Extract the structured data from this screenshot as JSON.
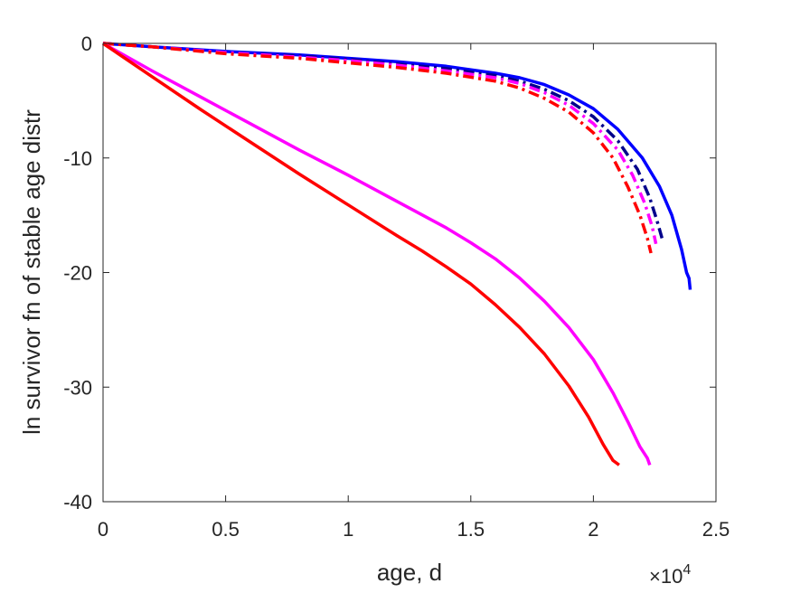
{
  "chart_data": {
    "type": "line",
    "xlabel": "age, d",
    "ylabel": "ln survivor fn of stable age distr",
    "x_exponent_base": "×10",
    "x_exponent_power": "4",
    "xlim": [
      0,
      25000
    ],
    "ylim": [
      -40,
      0
    ],
    "x_ticks": [
      {
        "value": 0,
        "label": "0"
      },
      {
        "value": 5000,
        "label": "0.5"
      },
      {
        "value": 10000,
        "label": "1"
      },
      {
        "value": 15000,
        "label": "1.5"
      },
      {
        "value": 20000,
        "label": "2"
      },
      {
        "value": 25000,
        "label": "2.5"
      }
    ],
    "y_ticks": [
      {
        "value": 0,
        "label": "0"
      },
      {
        "value": -10,
        "label": "-10"
      },
      {
        "value": -20,
        "label": "-20"
      },
      {
        "value": -30,
        "label": "-30"
      },
      {
        "value": -40,
        "label": "-40"
      }
    ],
    "grid": false,
    "legend": "none",
    "series": [
      {
        "color": "#0000ff",
        "style": "solid",
        "points": [
          [
            0,
            0
          ],
          [
            2000,
            -0.3
          ],
          [
            5000,
            -0.7
          ],
          [
            8000,
            -1.0
          ],
          [
            10000,
            -1.3
          ],
          [
            12000,
            -1.6
          ],
          [
            14000,
            -2.0
          ],
          [
            16000,
            -2.6
          ],
          [
            17000,
            -3.0
          ],
          [
            18000,
            -3.6
          ],
          [
            19000,
            -4.5
          ],
          [
            20000,
            -5.7
          ],
          [
            21000,
            -7.5
          ],
          [
            22000,
            -10.0
          ],
          [
            22700,
            -12.5
          ],
          [
            23200,
            -15.0
          ],
          [
            23600,
            -18.0
          ],
          [
            23800,
            -20.0
          ],
          [
            23900,
            -20.5
          ],
          [
            23950,
            -21.5
          ]
        ]
      },
      {
        "color": "#00008b",
        "style": "dashdot",
        "points": [
          [
            0,
            0
          ],
          [
            2000,
            -0.3
          ],
          [
            5000,
            -0.8
          ],
          [
            8000,
            -1.1
          ],
          [
            10000,
            -1.4
          ],
          [
            12000,
            -1.8
          ],
          [
            14000,
            -2.2
          ],
          [
            16000,
            -2.8
          ],
          [
            17000,
            -3.3
          ],
          [
            18000,
            -4.0
          ],
          [
            19000,
            -5.0
          ],
          [
            20000,
            -6.4
          ],
          [
            21000,
            -8.5
          ],
          [
            21800,
            -11.0
          ],
          [
            22300,
            -13.5
          ],
          [
            22600,
            -15.5
          ],
          [
            22800,
            -17.0
          ]
        ]
      },
      {
        "color": "#ff00ff",
        "style": "dashdot",
        "points": [
          [
            0,
            0
          ],
          [
            2000,
            -0.3
          ],
          [
            5000,
            -0.8
          ],
          [
            8000,
            -1.2
          ],
          [
            10000,
            -1.5
          ],
          [
            12000,
            -1.9
          ],
          [
            14000,
            -2.4
          ],
          [
            16000,
            -3.0
          ],
          [
            17000,
            -3.5
          ],
          [
            18000,
            -4.3
          ],
          [
            19000,
            -5.4
          ],
          [
            20000,
            -7.0
          ],
          [
            21000,
            -9.3
          ],
          [
            21600,
            -11.5
          ],
          [
            22100,
            -14.0
          ],
          [
            22400,
            -16.0
          ],
          [
            22550,
            -17.5
          ]
        ]
      },
      {
        "color": "#ff0000",
        "style": "dashdot",
        "points": [
          [
            0,
            0
          ],
          [
            2000,
            -0.3
          ],
          [
            5000,
            -0.9
          ],
          [
            8000,
            -1.3
          ],
          [
            10000,
            -1.7
          ],
          [
            12000,
            -2.1
          ],
          [
            14000,
            -2.6
          ],
          [
            16000,
            -3.3
          ],
          [
            17000,
            -3.9
          ],
          [
            18000,
            -4.8
          ],
          [
            19000,
            -6.0
          ],
          [
            20000,
            -7.8
          ],
          [
            20800,
            -10.0
          ],
          [
            21400,
            -12.5
          ],
          [
            21900,
            -15.0
          ],
          [
            22200,
            -17.0
          ],
          [
            22350,
            -18.3
          ]
        ]
      },
      {
        "color": "#ff00ff",
        "style": "solid",
        "points": [
          [
            0,
            0
          ],
          [
            2000,
            -2.4
          ],
          [
            4000,
            -4.7
          ],
          [
            6000,
            -7.0
          ],
          [
            8000,
            -9.3
          ],
          [
            10000,
            -11.5
          ],
          [
            12000,
            -13.8
          ],
          [
            14000,
            -16.1
          ],
          [
            15000,
            -17.4
          ],
          [
            16000,
            -18.8
          ],
          [
            17000,
            -20.5
          ],
          [
            18000,
            -22.5
          ],
          [
            19000,
            -24.8
          ],
          [
            20000,
            -27.6
          ],
          [
            20800,
            -30.5
          ],
          [
            21400,
            -33.0
          ],
          [
            21900,
            -35.2
          ],
          [
            22200,
            -36.2
          ],
          [
            22300,
            -36.8
          ]
        ]
      },
      {
        "color": "#ff0000",
        "style": "solid",
        "points": [
          [
            0,
            0
          ],
          [
            2000,
            -2.9
          ],
          [
            4000,
            -5.8
          ],
          [
            6000,
            -8.6
          ],
          [
            8000,
            -11.4
          ],
          [
            10000,
            -14.1
          ],
          [
            12000,
            -16.8
          ],
          [
            13000,
            -18.1
          ],
          [
            14000,
            -19.5
          ],
          [
            15000,
            -21.0
          ],
          [
            16000,
            -22.8
          ],
          [
            17000,
            -24.8
          ],
          [
            18000,
            -27.1
          ],
          [
            19000,
            -29.9
          ],
          [
            19800,
            -32.6
          ],
          [
            20400,
            -35.0
          ],
          [
            20800,
            -36.4
          ],
          [
            21050,
            -36.8
          ]
        ]
      }
    ]
  }
}
